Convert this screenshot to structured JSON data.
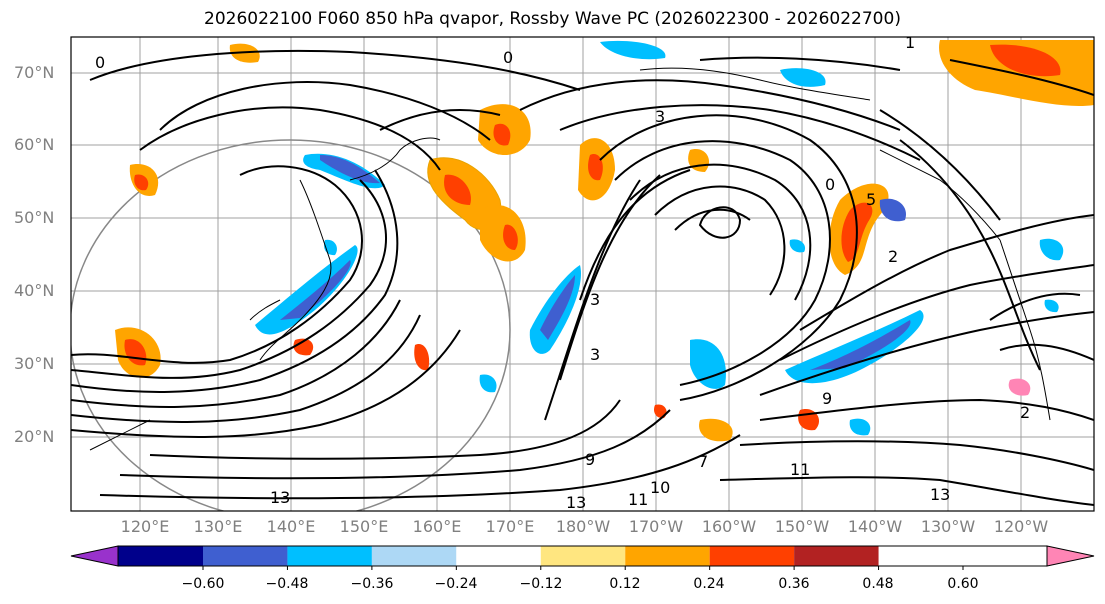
{
  "title": "2026022100 F060 850 hPa qvapor, Rossby Wave PC (2026022300 - 2026022700)",
  "latitude_labels": [
    "70°N",
    "60°N",
    "50°N",
    "40°N",
    "30°N",
    "20°N"
  ],
  "longitude_labels": [
    "120°E",
    "130°E",
    "140°E",
    "150°E",
    "160°E",
    "170°E",
    "180°W",
    "170°W",
    "160°W",
    "150°W",
    "140°W",
    "130°W",
    "120°W"
  ],
  "colorbar": {
    "tick_labels": [
      "−0.60",
      "−0.48",
      "−0.36",
      "−0.24",
      "−0.12",
      "0.12",
      "0.24",
      "0.36",
      "0.48",
      "0.60"
    ],
    "colors": [
      "#9932cc",
      "#00008b",
      "#3f5fd0",
      "#00bfff",
      "#add8f5",
      "#ffffff",
      "#ffe680",
      "#ffa500",
      "#ff4000",
      "#b22222",
      "#ff85b5"
    ]
  },
  "contour_labels": [
    "0",
    "0",
    "1",
    "3",
    "3",
    "3",
    "5",
    "9",
    "10",
    "11",
    "13",
    "2",
    "2",
    "0",
    "7",
    "9",
    "11",
    "13",
    "13"
  ]
}
